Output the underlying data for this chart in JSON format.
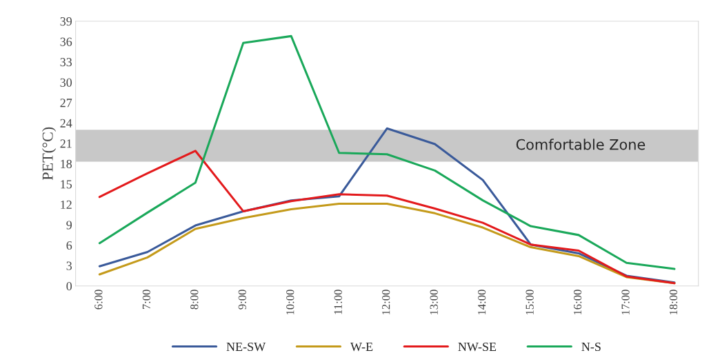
{
  "chart_data": {
    "type": "line",
    "ylabel": "PET(°C)",
    "categories": [
      "6:00",
      "7:00",
      "8:00",
      "9:00",
      "10:00",
      "11:00",
      "12:00",
      "13:00",
      "14:00",
      "15:00",
      "16:00",
      "17:00",
      "18:00"
    ],
    "series": [
      {
        "name": "NE-SW",
        "color": "#3a5a9a",
        "values": [
          2.9,
          5.0,
          8.9,
          11.0,
          12.6,
          13.2,
          23.2,
          20.9,
          15.6,
          6.1,
          4.8,
          1.5,
          0.5
        ]
      },
      {
        "name": "W-E",
        "color": "#c49a1a",
        "values": [
          1.7,
          4.2,
          8.4,
          10.0,
          11.3,
          12.1,
          12.1,
          10.7,
          8.6,
          5.7,
          4.4,
          1.3,
          0.4
        ]
      },
      {
        "name": "NW-SE",
        "color": "#e31a1c",
        "values": [
          13.1,
          16.6,
          19.9,
          11.0,
          12.5,
          13.5,
          13.3,
          11.4,
          9.3,
          6.1,
          5.2,
          1.4,
          0.4
        ]
      },
      {
        "name": "N-S",
        "color": "#1aa85a",
        "values": [
          6.3,
          10.8,
          15.2,
          35.8,
          36.8,
          19.6,
          19.4,
          17.0,
          12.6,
          8.8,
          7.5,
          3.4,
          2.5
        ]
      }
    ],
    "ylim": [
      0,
      39
    ],
    "yticks": [
      0,
      3,
      6,
      9,
      12,
      15,
      18,
      21,
      24,
      27,
      30,
      33,
      36,
      39
    ],
    "bands": [
      {
        "axis": "y",
        "from": 18.3,
        "to": 23.0,
        "label": "Comfortable Zone",
        "color": "#c8c8c8"
      }
    ],
    "grid": false,
    "legend": "bottom",
    "line_style": "solid",
    "marker": "none"
  }
}
